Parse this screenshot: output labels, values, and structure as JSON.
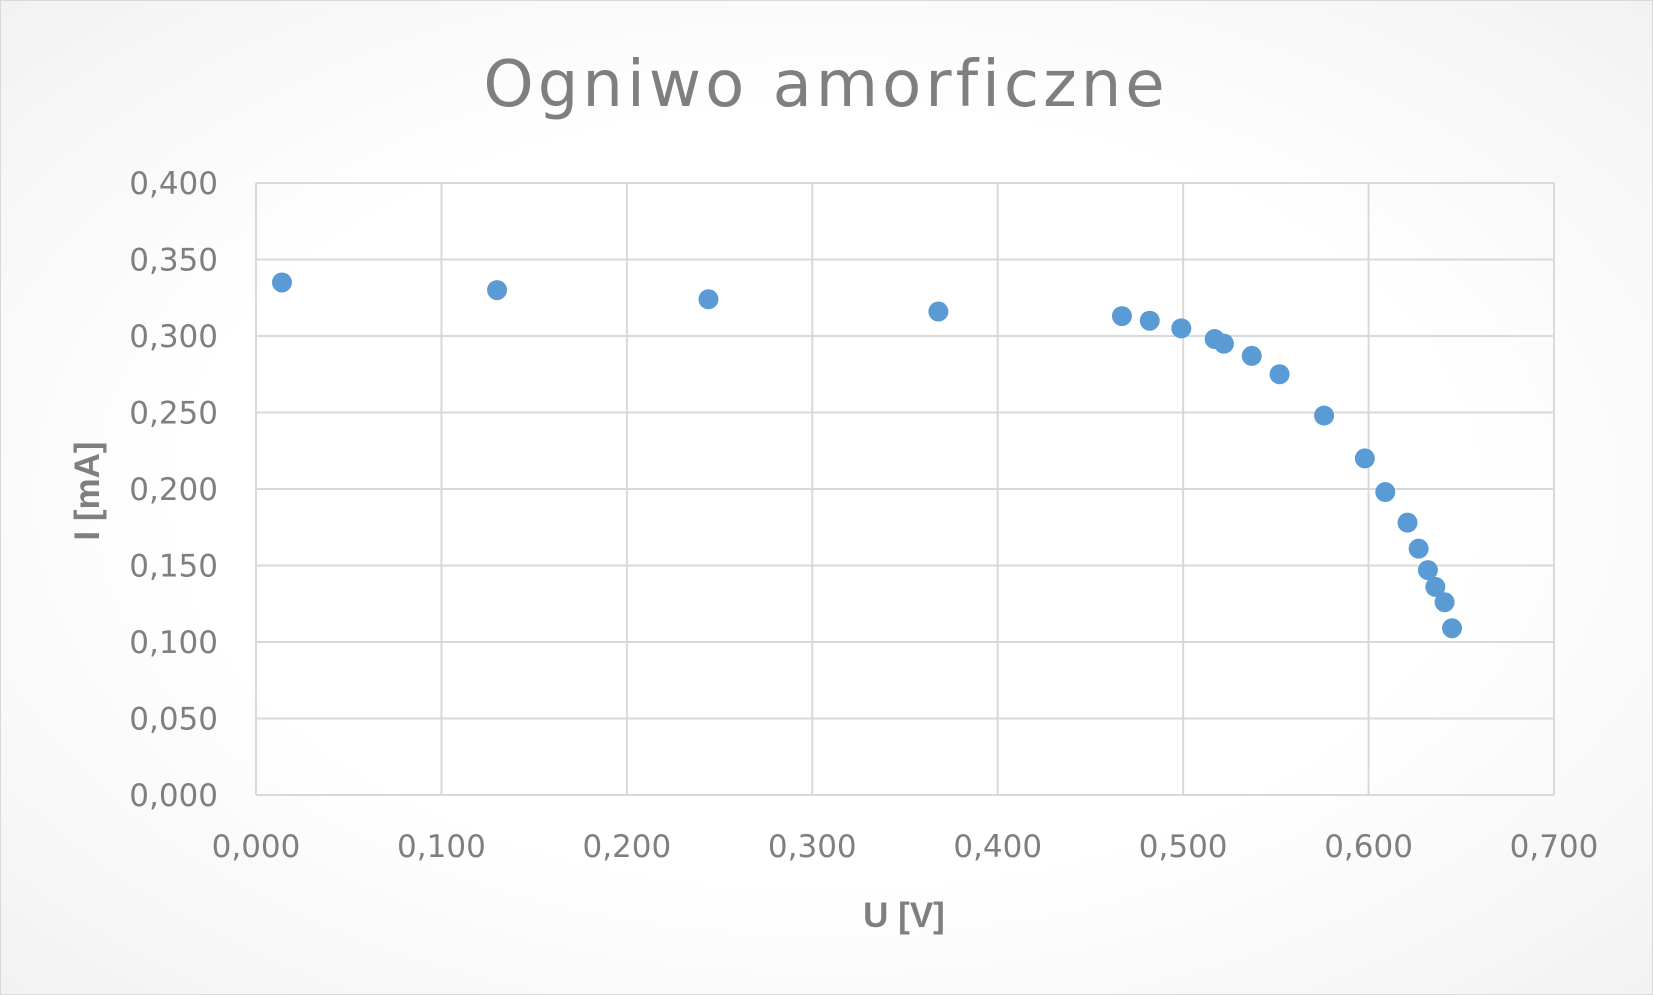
{
  "chart_data": {
    "type": "scatter",
    "title": "Ogniwo amorficzne",
    "xlabel": "U [V]",
    "ylabel": "I [mA]",
    "xlim": [
      0,
      0.7
    ],
    "ylim": [
      0,
      0.4
    ],
    "x_ticks": [
      "0,000",
      "0,100",
      "0,200",
      "0,300",
      "0,400",
      "0,500",
      "0,600",
      "0,700"
    ],
    "y_ticks": [
      "0,000",
      "0,050",
      "0,100",
      "0,150",
      "0,200",
      "0,250",
      "0,300",
      "0,350",
      "0,400"
    ],
    "x_tick_values": [
      0,
      0.1,
      0.2,
      0.3,
      0.4,
      0.5,
      0.6,
      0.7
    ],
    "y_tick_values": [
      0,
      0.05,
      0.1,
      0.15,
      0.2,
      0.25,
      0.3,
      0.35,
      0.4
    ],
    "grid": true,
    "legend": "none",
    "series_color": "#5b9bd5",
    "series": [
      {
        "x": [
          0.014,
          0.13,
          0.244,
          0.368,
          0.467,
          0.482,
          0.499,
          0.517,
          0.522,
          0.537,
          0.552,
          0.576,
          0.598,
          0.609,
          0.621,
          0.627,
          0.632,
          0.636,
          0.641,
          0.645
        ],
        "y": [
          0.335,
          0.33,
          0.324,
          0.316,
          0.313,
          0.31,
          0.305,
          0.298,
          0.295,
          0.287,
          0.275,
          0.248,
          0.22,
          0.198,
          0.178,
          0.161,
          0.147,
          0.136,
          0.126,
          0.109
        ]
      }
    ]
  }
}
